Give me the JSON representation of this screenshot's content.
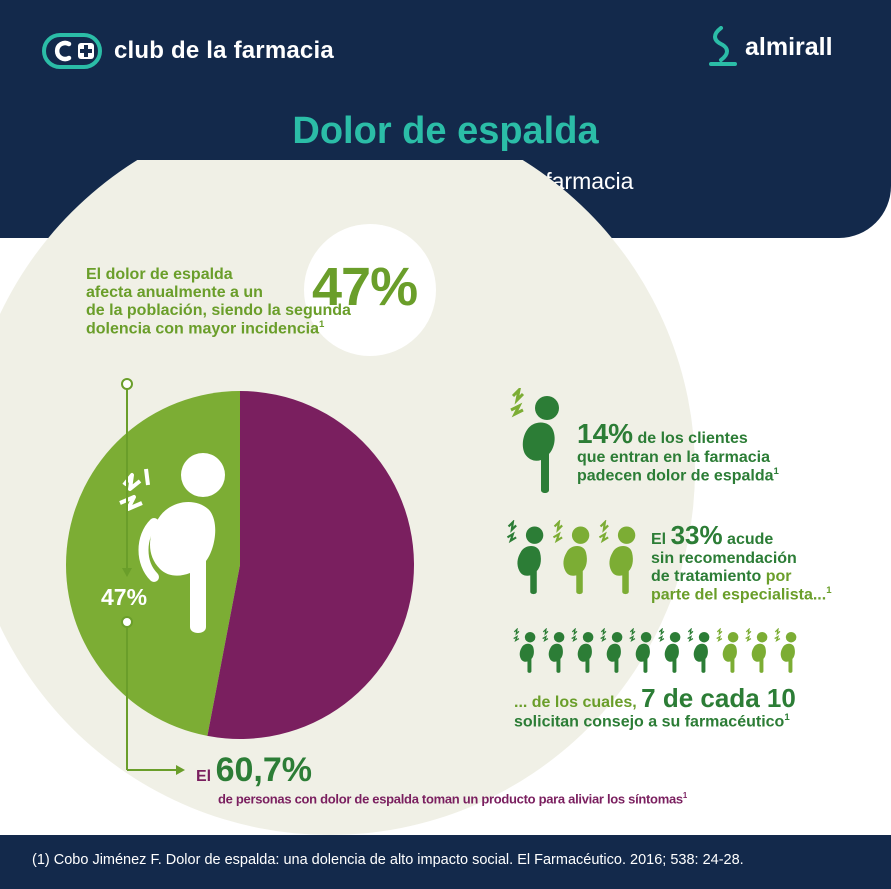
{
  "header": {
    "club_logo_text": "club de la farmacia",
    "brand_logo_text": "almirall",
    "title": "Dolor de espalda",
    "subtitle": "Importancia en la oficina de farmacia"
  },
  "stat_annual": {
    "big_value": "47%",
    "line1": "El dolor de espalda",
    "line2": "afecta anualmente a un",
    "line3": "de la población, siendo la segunda",
    "line4": "dolencia con mayor incidencia",
    "ref": "1"
  },
  "pie": {
    "label": "47%",
    "values": [
      47,
      53
    ],
    "colors": [
      "#7cad34",
      "#7a1f5f"
    ]
  },
  "stat_clients": {
    "value": "14%",
    "text1": " de los clientes",
    "line2": "que entran en la farmacia",
    "line3": "padecen dolor de espalda",
    "ref": "1"
  },
  "stat_no_recommendation": {
    "prefix": "El ",
    "value": "33%",
    "text1": " acude",
    "line2": "sin recomendación",
    "line3a": "de tratamiento ",
    "line3b": "por",
    "line4": "parte del especialista...",
    "ref": "1"
  },
  "stat_advice": {
    "prefix": "... de los cuales, ",
    "value": "7 de cada 10",
    "line2": "solicitan consejo a su farmacéutico",
    "ref": "1",
    "figures_dark": 7,
    "figures_total": 10
  },
  "stat_product": {
    "prefix": "El ",
    "value": "60,7%",
    "line2": "de personas con dolor de espalda  toman un producto para  aliviar los síntomas",
    "ref": "1"
  },
  "footer": {
    "reference": "(1) Cobo Jiménez F. Dolor de espalda: una dolencia de alto impacto social. El Farmacéutico. 2016; 538: 24-28."
  },
  "colors": {
    "navy": "#13294b",
    "teal": "#2bbda7",
    "green": "#7cad34",
    "dark_green": "#2c7d36",
    "purple": "#7a1f5f",
    "cream": "#f0f0e6"
  }
}
